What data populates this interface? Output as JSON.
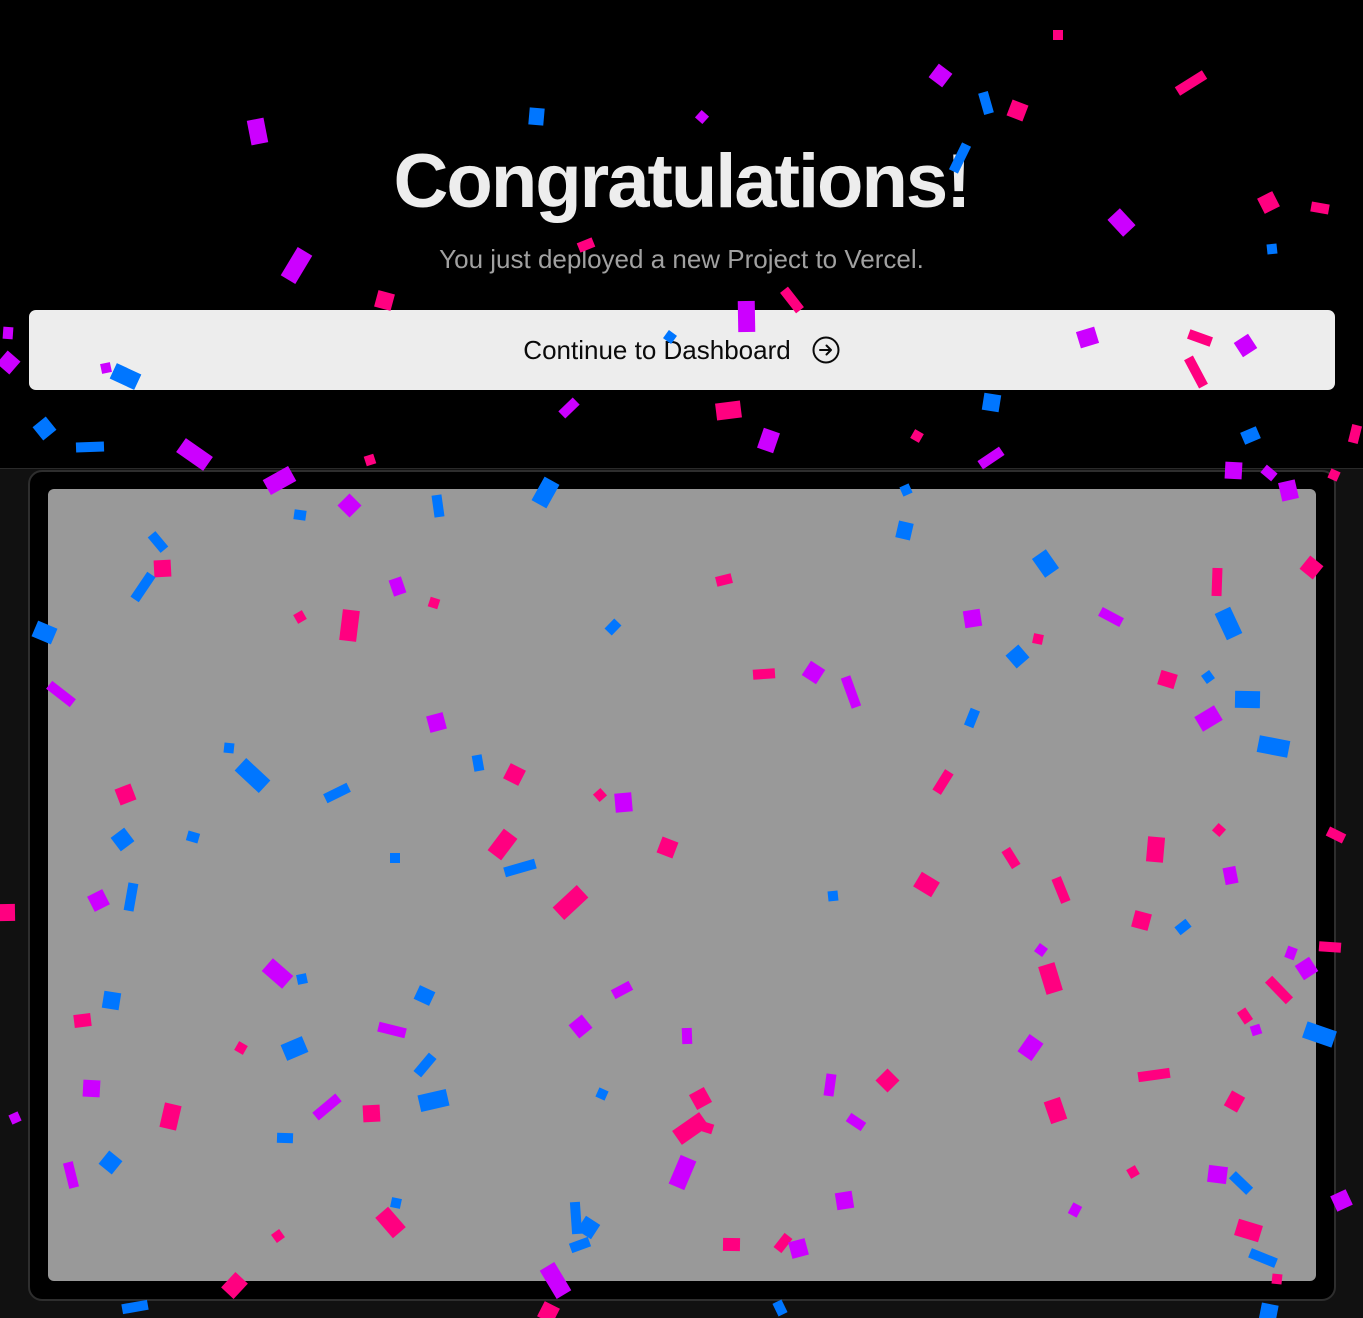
{
  "hero": {
    "title": "Congratulations!",
    "subtitle": "You just deployed a new Project to Vercel."
  },
  "cta": {
    "label": "Continue to Dashboard",
    "icon": "arrow-right-circle-icon"
  },
  "preview": {
    "icon": "deployment-preview"
  },
  "colors": {
    "background": "#000000",
    "lower_background": "#111111",
    "button_bg": "#ededed",
    "title": "#ededed",
    "subtitle": "#a1a1a1",
    "preview_fill": "#999999",
    "confetti_pink": "#ff0080",
    "confetti_purple": "#cc00ff",
    "confetti_blue": "#0076ff"
  }
}
